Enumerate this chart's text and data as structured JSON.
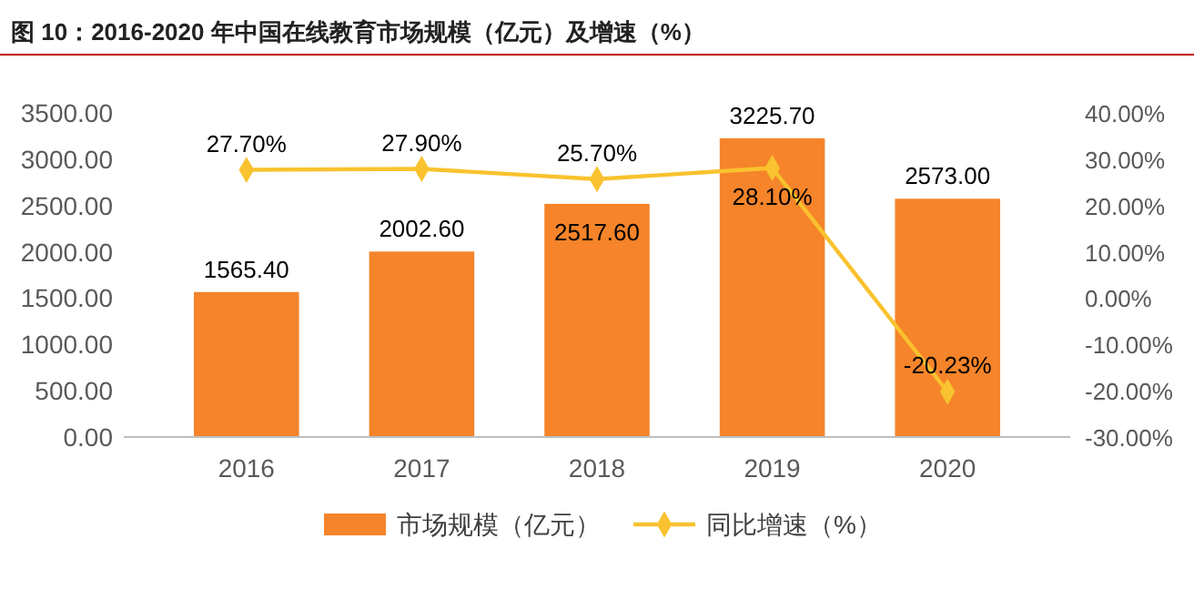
{
  "chart_data": {
    "type": "bar",
    "title": "图 10：2016-2020 年中国在线教育市场规模（亿元）及增速（%）",
    "categories": [
      "2016",
      "2017",
      "2018",
      "2019",
      "2020"
    ],
    "series": [
      {
        "name": "市场规模（亿元）",
        "color": "#f5842a",
        "values": [
          1565.4,
          2002.6,
          2517.6,
          3225.7,
          2573.0
        ],
        "value_labels": [
          "1565.40",
          "2002.60",
          "2517.60",
          "3225.70",
          "2573.00"
        ]
      },
      {
        "name": "同比增速（%）",
        "type": "line",
        "axis": "y2",
        "color": "#f9c22e",
        "marker": "diamond",
        "values": [
          27.7,
          27.9,
          25.7,
          28.1,
          -20.23
        ],
        "value_labels": [
          "27.70%",
          "27.90%",
          "25.70%",
          "28.10%",
          "-20.23%"
        ]
      }
    ],
    "ylim": [
      0,
      3500
    ],
    "yticks": [
      {
        "value": 0,
        "label": "0.00"
      },
      {
        "value": 500,
        "label": "500.00"
      },
      {
        "value": 1000,
        "label": "1000.00"
      },
      {
        "value": 1500,
        "label": "1500.00"
      },
      {
        "value": 2000,
        "label": "2000.00"
      },
      {
        "value": 2500,
        "label": "2500.00"
      },
      {
        "value": 3000,
        "label": "3000.00"
      },
      {
        "value": 3500,
        "label": "3500.00"
      }
    ],
    "y2lim": [
      -30,
      40
    ],
    "y2ticks": [
      {
        "value": -30,
        "label": "-30.00%"
      },
      {
        "value": -20,
        "label": "-20.00%"
      },
      {
        "value": -10,
        "label": "-10.00%"
      },
      {
        "value": 0,
        "label": "0.00%"
      },
      {
        "value": 10,
        "label": "10.00%"
      },
      {
        "value": 20,
        "label": "20.00%"
      },
      {
        "value": 30,
        "label": "30.00%"
      },
      {
        "value": 40,
        "label": "40.00%"
      }
    ],
    "legend": "bottom"
  }
}
